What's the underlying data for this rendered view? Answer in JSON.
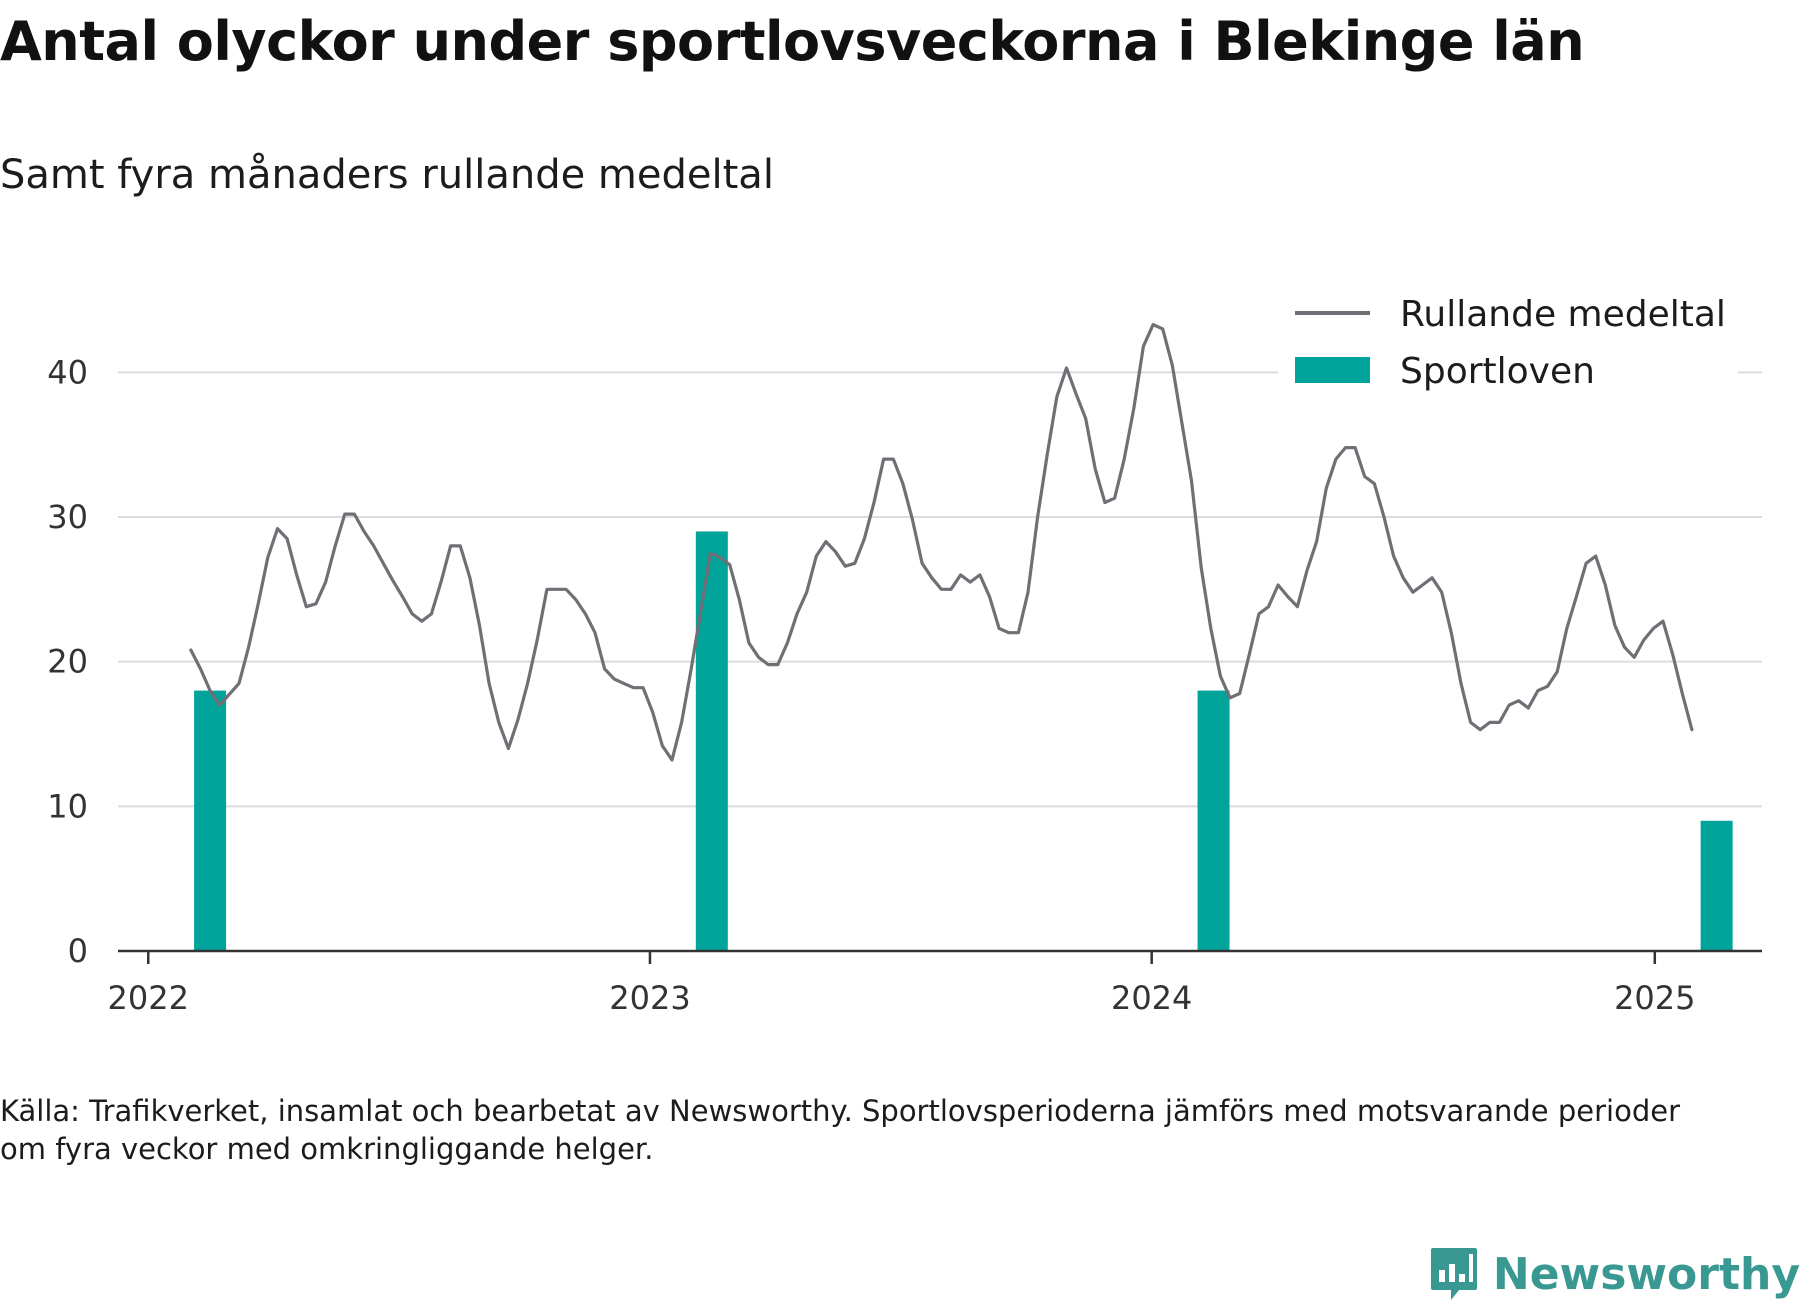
{
  "title": "Antal olyckor under sportlovsveckorna i Blekinge län",
  "subtitle": "Samt fyra månaders rullande medeltal",
  "source_text": "Källa: Trafikverket, insamlat och bearbetat av Newsworthy. Sportlovsperioderna jämförs med motsvarande perioder om fyra veckor med omkringliggande helger.",
  "brand": {
    "name": "Newsworthy",
    "logo_icon": "bar-chart-icon",
    "color": "#3a9893"
  },
  "chart_data": {
    "type": "bar+line",
    "ylim": [
      0,
      45
    ],
    "yticks": [
      0,
      10,
      20,
      30,
      40
    ],
    "xlim": [
      "2021-12-10",
      "2025-03-20"
    ],
    "xticks": [
      {
        "date": "2022-01-01",
        "label": "2022"
      },
      {
        "date": "2023-01-01",
        "label": "2023"
      },
      {
        "date": "2024-01-01",
        "label": "2024"
      },
      {
        "date": "2025-01-01",
        "label": "2025"
      }
    ],
    "grid": true,
    "legend_position": "top-right",
    "legend": [
      {
        "key": "line",
        "label": "Rullande medeltal",
        "color": "#6f6f76"
      },
      {
        "key": "bars",
        "label": "Sportloven",
        "color": "#00a49a"
      }
    ],
    "bars": {
      "name": "Sportloven",
      "color": "#00a49a",
      "points": [
        {
          "date": "2022-02-15",
          "value": 18
        },
        {
          "date": "2023-02-15",
          "value": 29
        },
        {
          "date": "2024-02-15",
          "value": 18
        },
        {
          "date": "2025-02-15",
          "value": 9
        }
      ]
    },
    "line": {
      "name": "Rullande medeltal",
      "color": "#6f6f76",
      "points": [
        {
          "date": "2022-02-01",
          "value": 20.8
        },
        {
          "date": "2022-02-08",
          "value": 19.5
        },
        {
          "date": "2022-02-15",
          "value": 18.0
        },
        {
          "date": "2022-02-22",
          "value": 17.0
        },
        {
          "date": "2022-03-08",
          "value": 18.5
        },
        {
          "date": "2022-03-15",
          "value": 21.0
        },
        {
          "date": "2022-03-22",
          "value": 24.0
        },
        {
          "date": "2022-03-29",
          "value": 27.2
        },
        {
          "date": "2022-04-05",
          "value": 29.2
        },
        {
          "date": "2022-04-12",
          "value": 28.5
        },
        {
          "date": "2022-04-19",
          "value": 26.0
        },
        {
          "date": "2022-04-26",
          "value": 23.8
        },
        {
          "date": "2022-05-03",
          "value": 24.0
        },
        {
          "date": "2022-05-10",
          "value": 25.5
        },
        {
          "date": "2022-05-17",
          "value": 28.0
        },
        {
          "date": "2022-05-24",
          "value": 30.2
        },
        {
          "date": "2022-05-31",
          "value": 30.2
        },
        {
          "date": "2022-06-07",
          "value": 29.0
        },
        {
          "date": "2022-06-14",
          "value": 28.0
        },
        {
          "date": "2022-06-21",
          "value": 26.8
        },
        {
          "date": "2022-06-28",
          "value": 25.6
        },
        {
          "date": "2022-07-05",
          "value": 24.5
        },
        {
          "date": "2022-07-12",
          "value": 23.3
        },
        {
          "date": "2022-07-19",
          "value": 22.8
        },
        {
          "date": "2022-07-26",
          "value": 23.3
        },
        {
          "date": "2022-08-02",
          "value": 25.5
        },
        {
          "date": "2022-08-09",
          "value": 28.0
        },
        {
          "date": "2022-08-16",
          "value": 28.0
        },
        {
          "date": "2022-08-23",
          "value": 25.8
        },
        {
          "date": "2022-08-30",
          "value": 22.5
        },
        {
          "date": "2022-09-06",
          "value": 18.5
        },
        {
          "date": "2022-09-13",
          "value": 15.8
        },
        {
          "date": "2022-09-20",
          "value": 14.0
        },
        {
          "date": "2022-09-27",
          "value": 16.0
        },
        {
          "date": "2022-10-04",
          "value": 18.5
        },
        {
          "date": "2022-10-11",
          "value": 21.5
        },
        {
          "date": "2022-10-18",
          "value": 25.0
        },
        {
          "date": "2022-10-25",
          "value": 25.0
        },
        {
          "date": "2022-11-01",
          "value": 25.0
        },
        {
          "date": "2022-11-08",
          "value": 24.3
        },
        {
          "date": "2022-11-15",
          "value": 23.3
        },
        {
          "date": "2022-11-22",
          "value": 22.0
        },
        {
          "date": "2022-11-29",
          "value": 19.5
        },
        {
          "date": "2022-12-06",
          "value": 18.8
        },
        {
          "date": "2022-12-13",
          "value": 18.5
        },
        {
          "date": "2022-12-20",
          "value": 18.2
        },
        {
          "date": "2022-12-27",
          "value": 18.2
        },
        {
          "date": "2023-01-03",
          "value": 16.5
        },
        {
          "date": "2023-01-10",
          "value": 14.2
        },
        {
          "date": "2023-01-17",
          "value": 13.2
        },
        {
          "date": "2023-01-24",
          "value": 15.8
        },
        {
          "date": "2023-01-31",
          "value": 19.5
        },
        {
          "date": "2023-02-07",
          "value": 23.5
        },
        {
          "date": "2023-02-14",
          "value": 27.5
        },
        {
          "date": "2023-02-21",
          "value": 27.2
        },
        {
          "date": "2023-02-28",
          "value": 26.7
        },
        {
          "date": "2023-03-07",
          "value": 24.3
        },
        {
          "date": "2023-03-14",
          "value": 21.3
        },
        {
          "date": "2023-03-21",
          "value": 20.3
        },
        {
          "date": "2023-03-28",
          "value": 19.8
        },
        {
          "date": "2023-04-04",
          "value": 19.8
        },
        {
          "date": "2023-04-11",
          "value": 21.3
        },
        {
          "date": "2023-04-18",
          "value": 23.3
        },
        {
          "date": "2023-04-25",
          "value": 24.8
        },
        {
          "date": "2023-05-02",
          "value": 27.3
        },
        {
          "date": "2023-05-09",
          "value": 28.3
        },
        {
          "date": "2023-05-16",
          "value": 27.6
        },
        {
          "date": "2023-05-23",
          "value": 26.6
        },
        {
          "date": "2023-05-30",
          "value": 26.8
        },
        {
          "date": "2023-06-06",
          "value": 28.5
        },
        {
          "date": "2023-06-13",
          "value": 31.0
        },
        {
          "date": "2023-06-20",
          "value": 34.0
        },
        {
          "date": "2023-06-27",
          "value": 34.0
        },
        {
          "date": "2023-07-04",
          "value": 32.3
        },
        {
          "date": "2023-07-11",
          "value": 29.8
        },
        {
          "date": "2023-07-18",
          "value": 26.8
        },
        {
          "date": "2023-07-25",
          "value": 25.8
        },
        {
          "date": "2023-08-01",
          "value": 25.0
        },
        {
          "date": "2023-08-08",
          "value": 25.0
        },
        {
          "date": "2023-08-15",
          "value": 26.0
        },
        {
          "date": "2023-08-22",
          "value": 25.5
        },
        {
          "date": "2023-08-29",
          "value": 26.0
        },
        {
          "date": "2023-09-05",
          "value": 24.5
        },
        {
          "date": "2023-09-12",
          "value": 22.3
        },
        {
          "date": "2023-09-19",
          "value": 22.0
        },
        {
          "date": "2023-09-26",
          "value": 22.0
        },
        {
          "date": "2023-10-03",
          "value": 24.8
        },
        {
          "date": "2023-10-10",
          "value": 30.0
        },
        {
          "date": "2023-10-17",
          "value": 34.3
        },
        {
          "date": "2023-10-24",
          "value": 38.3
        },
        {
          "date": "2023-10-31",
          "value": 40.3
        },
        {
          "date": "2023-11-07",
          "value": 38.5
        },
        {
          "date": "2023-11-14",
          "value": 36.8
        },
        {
          "date": "2023-11-21",
          "value": 33.3
        },
        {
          "date": "2023-11-28",
          "value": 31.0
        },
        {
          "date": "2023-12-05",
          "value": 31.3
        },
        {
          "date": "2023-12-12",
          "value": 34.0
        },
        {
          "date": "2023-12-19",
          "value": 37.5
        },
        {
          "date": "2023-12-26",
          "value": 41.8
        },
        {
          "date": "2024-01-02",
          "value": 43.3
        },
        {
          "date": "2024-01-09",
          "value": 43.0
        },
        {
          "date": "2024-01-16",
          "value": 40.5
        },
        {
          "date": "2024-01-23",
          "value": 36.5
        },
        {
          "date": "2024-01-30",
          "value": 32.5
        },
        {
          "date": "2024-02-06",
          "value": 26.5
        },
        {
          "date": "2024-02-13",
          "value": 22.3
        },
        {
          "date": "2024-02-20",
          "value": 19.0
        },
        {
          "date": "2024-02-27",
          "value": 17.5
        },
        {
          "date": "2024-03-05",
          "value": 17.8
        },
        {
          "date": "2024-03-12",
          "value": 20.5
        },
        {
          "date": "2024-03-19",
          "value": 23.3
        },
        {
          "date": "2024-03-26",
          "value": 23.8
        },
        {
          "date": "2024-04-02",
          "value": 25.3
        },
        {
          "date": "2024-04-09",
          "value": 24.5
        },
        {
          "date": "2024-04-16",
          "value": 23.8
        },
        {
          "date": "2024-04-23",
          "value": 26.3
        },
        {
          "date": "2024-04-30",
          "value": 28.3
        },
        {
          "date": "2024-05-07",
          "value": 32.0
        },
        {
          "date": "2024-05-14",
          "value": 34.0
        },
        {
          "date": "2024-05-21",
          "value": 34.8
        },
        {
          "date": "2024-05-28",
          "value": 34.8
        },
        {
          "date": "2024-06-04",
          "value": 32.8
        },
        {
          "date": "2024-06-11",
          "value": 32.3
        },
        {
          "date": "2024-06-18",
          "value": 30.0
        },
        {
          "date": "2024-06-25",
          "value": 27.3
        },
        {
          "date": "2024-07-02",
          "value": 25.8
        },
        {
          "date": "2024-07-09",
          "value": 24.8
        },
        {
          "date": "2024-07-16",
          "value": 25.3
        },
        {
          "date": "2024-07-23",
          "value": 25.8
        },
        {
          "date": "2024-07-30",
          "value": 24.8
        },
        {
          "date": "2024-08-06",
          "value": 22.0
        },
        {
          "date": "2024-08-13",
          "value": 18.5
        },
        {
          "date": "2024-08-20",
          "value": 15.8
        },
        {
          "date": "2024-08-27",
          "value": 15.3
        },
        {
          "date": "2024-09-03",
          "value": 15.8
        },
        {
          "date": "2024-09-10",
          "value": 15.8
        },
        {
          "date": "2024-09-17",
          "value": 17.0
        },
        {
          "date": "2024-09-24",
          "value": 17.3
        },
        {
          "date": "2024-10-01",
          "value": 16.8
        },
        {
          "date": "2024-10-08",
          "value": 18.0
        },
        {
          "date": "2024-10-15",
          "value": 18.3
        },
        {
          "date": "2024-10-22",
          "value": 19.3
        },
        {
          "date": "2024-10-29",
          "value": 22.3
        },
        {
          "date": "2024-11-05",
          "value": 24.5
        },
        {
          "date": "2024-11-12",
          "value": 26.8
        },
        {
          "date": "2024-11-19",
          "value": 27.3
        },
        {
          "date": "2024-11-26",
          "value": 25.3
        },
        {
          "date": "2024-12-03",
          "value": 22.5
        },
        {
          "date": "2024-12-10",
          "value": 21.0
        },
        {
          "date": "2024-12-17",
          "value": 20.3
        },
        {
          "date": "2024-12-24",
          "value": 21.5
        },
        {
          "date": "2024-12-31",
          "value": 22.3
        },
        {
          "date": "2025-01-07",
          "value": 22.8
        },
        {
          "date": "2025-01-14",
          "value": 20.5
        },
        {
          "date": "2025-01-21",
          "value": 17.8
        },
        {
          "date": "2025-01-28",
          "value": 15.3
        }
      ]
    }
  }
}
